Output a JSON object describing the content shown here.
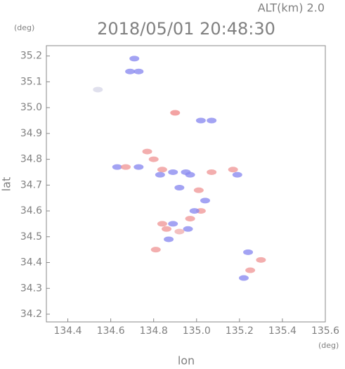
{
  "chart_data": {
    "type": "scatter",
    "title": "2018/05/01 20:48:30",
    "subtitle": "ALT(km) 2.0",
    "y_unit": "(deg)",
    "x_unit": "(deg)",
    "x_label": "lon",
    "y_label": "lat",
    "xlim": [
      134.3,
      135.6
    ],
    "ylim": [
      34.17,
      35.24
    ],
    "xticks": [
      134.4,
      134.6,
      134.8,
      {
        "value": 135,
        "label": "135.0"
      },
      135.2,
      135.4,
      135.6
    ],
    "yticks": [
      34.2,
      34.3,
      34.4,
      34.5,
      34.6,
      34.7,
      34.8,
      34.9,
      {
        "value": 35,
        "label": "35.0"
      },
      35.1,
      35.2
    ],
    "x": [
      134.71,
      134.69,
      134.73,
      134.54,
      134.9,
      135.02,
      135.07,
      134.63,
      134.67,
      134.73,
      134.77,
      134.8,
      134.84,
      134.83,
      134.89,
      134.95,
      134.97,
      134.92,
      135.01,
      135.07,
      135.04,
      135.02,
      134.99,
      134.97,
      134.96,
      134.89,
      134.86,
      134.92,
      134.87,
      134.84,
      135.17,
      135.19,
      135.24,
      135.25,
      135.22,
      135.3,
      134.81
    ],
    "y": [
      35.19,
      35.14,
      35.14,
      35.07,
      34.98,
      34.95,
      34.95,
      34.77,
      34.77,
      34.77,
      34.83,
      34.8,
      34.76,
      34.74,
      34.75,
      34.75,
      34.74,
      34.69,
      34.68,
      34.75,
      34.64,
      34.6,
      34.6,
      34.57,
      34.53,
      34.55,
      34.53,
      34.52,
      34.49,
      34.55,
      34.76,
      34.74,
      34.44,
      34.37,
      34.34,
      34.41,
      34.45
    ],
    "colors": [
      "#8c8cf0",
      "#8c8cf0",
      "#8c8cf0",
      "#d8d8e8",
      "#f08c8c",
      "#8c8cf0",
      "#8c8cf0",
      "#8c8cf0",
      "#f09a9a",
      "#8c8cf0",
      "#f09a9a",
      "#f09a9a",
      "#f09a9a",
      "#8c8cf0",
      "#8c8cf0",
      "#8c8cf0",
      "#8c8cf0",
      "#8c8cf0",
      "#f09a9a",
      "#f09a9a",
      "#8c8cf0",
      "#f09a9a",
      "#8c8cf0",
      "#f09a9a",
      "#8c8cf0",
      "#8c8cf0",
      "#f09a9a",
      "#f0b0b0",
      "#8c8cf0",
      "#f09a9a",
      "#f09a9a",
      "#8c8cf0",
      "#8c8cf0",
      "#f09a9a",
      "#8c8cf0",
      "#f09a9a",
      "#f09a9a"
    ]
  }
}
